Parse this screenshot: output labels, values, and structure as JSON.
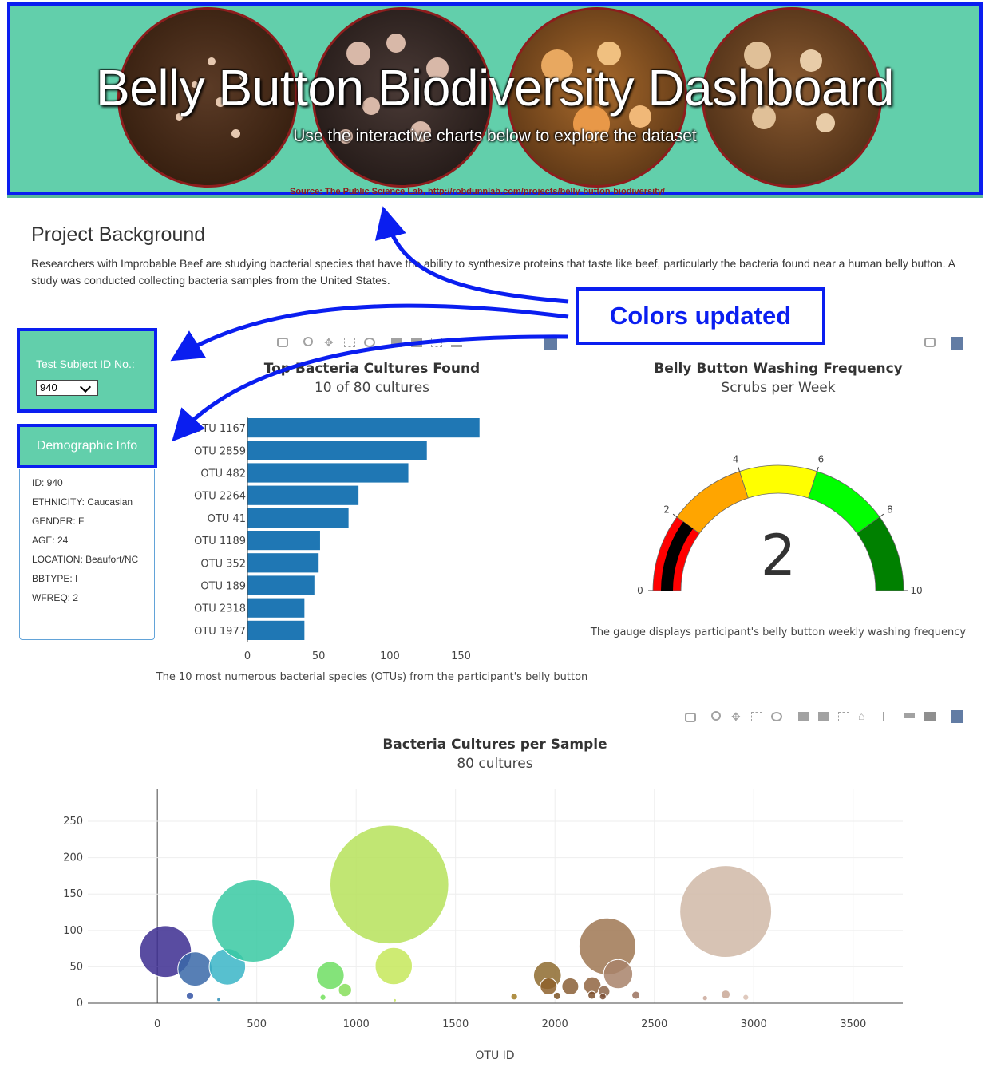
{
  "hero": {
    "title": "Belly Button Biodiversity Dashboard",
    "subtitle": "Use the interactive charts below to explore the dataset",
    "source": "Source: The Public Science Lab, http://robdunnlab.com/projects/belly-button-biodiversity/"
  },
  "background": {
    "heading": "Project Background",
    "text": "Researchers with Improbable Beef are studying bacterial species that have the ability to synthesize proteins that taste like beef, particularly the bacteria found near a human belly button. A study was conducted collecting bacteria samples from the United States."
  },
  "selector": {
    "label": "Test Subject ID No.:",
    "value": "940"
  },
  "demographics": {
    "title": "Demographic Info",
    "rows": [
      "ID: 940",
      "ETHNICITY: Caucasian",
      "GENDER: F",
      "AGE: 24",
      "LOCATION: Beaufort/NC",
      "BBTYPE: I",
      "WFREQ: 2"
    ]
  },
  "annotation": {
    "label": "Colors updated"
  },
  "colors": {
    "accent": "#62cfab",
    "highlight": "#0a1ef0",
    "bar": "#1f77b4"
  },
  "chart_data": [
    {
      "type": "bar",
      "orientation": "horizontal",
      "title": "Top Bacteria Cultures Found",
      "subtitle": "10 of 80 cultures",
      "caption": "The 10 most numerous bacterial species (OTUs) from the participant's belly button",
      "categories": [
        "OTU 1167",
        "OTU 2859",
        "OTU 482",
        "OTU 2264",
        "OTU 41",
        "OTU 1189",
        "OTU 352",
        "OTU 189",
        "OTU 2318",
        "OTU 1977"
      ],
      "values": [
        163,
        126,
        113,
        78,
        71,
        51,
        50,
        47,
        40,
        40
      ],
      "xticks": [
        0,
        50,
        100,
        150
      ],
      "xlim": [
        0,
        171
      ]
    },
    {
      "type": "gauge",
      "title": "Belly Button Washing Frequency",
      "subtitle": "Scrubs per Week",
      "caption": "The gauge displays participant's belly button weekly washing frequency",
      "value": 2,
      "range": [
        0,
        10
      ],
      "ticks": [
        0,
        2,
        4,
        6,
        8,
        10
      ],
      "steps": [
        {
          "range": [
            0,
            2
          ],
          "color": "#ff0000"
        },
        {
          "range": [
            2,
            4
          ],
          "color": "#ffa500"
        },
        {
          "range": [
            4,
            6
          ],
          "color": "#ffff00"
        },
        {
          "range": [
            6,
            8
          ],
          "color": "#00ff00"
        },
        {
          "range": [
            8,
            10
          ],
          "color": "#008000"
        }
      ],
      "bar_color": "#000000"
    },
    {
      "type": "scatter",
      "title": "Bacteria Cultures per Sample",
      "subtitle": "80 cultures",
      "xlabel": "OTU ID",
      "xticks": [
        0,
        500,
        1000,
        1500,
        2000,
        2500,
        3000,
        3500
      ],
      "yticks": [
        0,
        50,
        100,
        150,
        200,
        250
      ],
      "xlim": [
        -350,
        3750
      ],
      "ylim": [
        0,
        295
      ],
      "points": [
        {
          "x": 41,
          "y": 71,
          "color": "#3c2d91"
        },
        {
          "x": 189,
          "y": 47,
          "color": "#3a69a8"
        },
        {
          "x": 164,
          "y": 10,
          "color": "#3454a4"
        },
        {
          "x": 308,
          "y": 5,
          "color": "#2d8fb8"
        },
        {
          "x": 352,
          "y": 50,
          "color": "#3ab5c7"
        },
        {
          "x": 482,
          "y": 113,
          "color": "#38c9a2"
        },
        {
          "x": 870,
          "y": 38,
          "color": "#6ede63"
        },
        {
          "x": 833,
          "y": 8,
          "color": "#72e15a"
        },
        {
          "x": 944,
          "y": 18,
          "color": "#86de5a"
        },
        {
          "x": 1167,
          "y": 163,
          "color": "#b6e25a"
        },
        {
          "x": 1189,
          "y": 51,
          "color": "#c5e85a"
        },
        {
          "x": 1194,
          "y": 4,
          "color": "#c3e25c"
        },
        {
          "x": 1795,
          "y": 9,
          "color": "#a27c27"
        },
        {
          "x": 1962,
          "y": 38,
          "color": "#8e6b2f"
        },
        {
          "x": 1968,
          "y": 23,
          "color": "#8e622b"
        },
        {
          "x": 2011,
          "y": 10,
          "color": "#7c5424"
        },
        {
          "x": 2077,
          "y": 23,
          "color": "#8a5f36"
        },
        {
          "x": 2188,
          "y": 24,
          "color": "#906541"
        },
        {
          "x": 2186,
          "y": 11,
          "color": "#7b4f2b"
        },
        {
          "x": 2247,
          "y": 16,
          "color": "#8c6448"
        },
        {
          "x": 2241,
          "y": 9,
          "color": "#7a4e34"
        },
        {
          "x": 2264,
          "y": 78,
          "color": "#9f7752"
        },
        {
          "x": 2318,
          "y": 40,
          "color": "#a8836a"
        },
        {
          "x": 2407,
          "y": 11,
          "color": "#9a715d"
        },
        {
          "x": 2859,
          "y": 126,
          "color": "#d0b8a7"
        },
        {
          "x": 2859,
          "y": 12,
          "color": "#c9a896"
        },
        {
          "x": 2755,
          "y": 7,
          "color": "#caa89a"
        },
        {
          "x": 2960,
          "y": 8,
          "color": "#d9c0b2"
        }
      ]
    }
  ]
}
